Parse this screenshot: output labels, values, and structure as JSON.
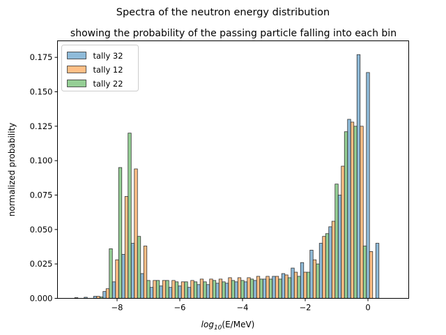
{
  "chart_data": {
    "type": "bar",
    "suptitle": "Spectra of the neutron energy distribution",
    "title": "showing the probability of the passing particle falling into each bin",
    "xlabel_main": "log",
    "xlabel_sub": "10",
    "xlabel_rest": "(E/MeV)",
    "ylabel": "normalized probability",
    "xlim": [
      -9.9,
      1.3
    ],
    "ylim": [
      0,
      0.187
    ],
    "xticks": [
      -8,
      -6,
      -4,
      -2,
      0
    ],
    "xtick_labels": [
      "−8",
      "−6",
      "−4",
      "−2",
      "0"
    ],
    "yticks": [
      0,
      0.025,
      0.05,
      0.075,
      0.1,
      0.125,
      0.15,
      0.175
    ],
    "ytick_labels": [
      "0.000",
      "0.025",
      "0.050",
      "0.075",
      "0.100",
      "0.125",
      "0.150",
      "0.175"
    ],
    "grid": false,
    "legend_position": "top-left",
    "bin_centers": [
      -9.2,
      -8.9,
      -8.6,
      -8.3,
      -8.0,
      -7.7,
      -7.4,
      -7.1,
      -6.8,
      -6.5,
      -6.2,
      -5.9,
      -5.6,
      -5.3,
      -5.0,
      -4.7,
      -4.4,
      -4.1,
      -3.8,
      -3.5,
      -3.2,
      -2.9,
      -2.6,
      -2.3,
      -2.0,
      -1.7,
      -1.4,
      -1.1,
      -0.8,
      -0.5,
      -0.2,
      0.1,
      0.4,
      0.7
    ],
    "series": [
      {
        "name": "tally 32",
        "color": "#1f77b4",
        "values": [
          0.0005,
          0.0008,
          0.0015,
          0.005,
          0.012,
          0.032,
          0.04,
          0.018,
          0.008,
          0.009,
          0.008,
          0.009,
          0.008,
          0.01,
          0.01,
          0.011,
          0.011,
          0.012,
          0.012,
          0.013,
          0.014,
          0.016,
          0.018,
          0.022,
          0.026,
          0.035,
          0.04,
          0.052,
          0.075,
          0.13,
          0.177,
          0.164,
          0.04,
          0.0
        ]
      },
      {
        "name": "tally 12",
        "color": "#ff7f0e",
        "values": [
          0.0,
          0.0,
          0.0015,
          0.007,
          0.028,
          0.074,
          0.094,
          0.038,
          0.013,
          0.013,
          0.013,
          0.012,
          0.013,
          0.014,
          0.014,
          0.014,
          0.015,
          0.015,
          0.015,
          0.016,
          0.016,
          0.016,
          0.017,
          0.019,
          0.019,
          0.028,
          0.045,
          0.056,
          0.096,
          0.128,
          0.125,
          0.034,
          0.0,
          0.0
        ]
      },
      {
        "name": "tally 22",
        "color": "#2ca02c",
        "values": [
          0.0,
          0.0,
          0.001,
          0.036,
          0.095,
          0.12,
          0.045,
          0.013,
          0.013,
          0.013,
          0.012,
          0.012,
          0.012,
          0.012,
          0.013,
          0.012,
          0.013,
          0.013,
          0.014,
          0.014,
          0.014,
          0.014,
          0.015,
          0.016,
          0.019,
          0.025,
          0.047,
          0.083,
          0.121,
          0.125,
          0.038,
          0.0,
          0.0,
          0.0
        ]
      }
    ]
  }
}
